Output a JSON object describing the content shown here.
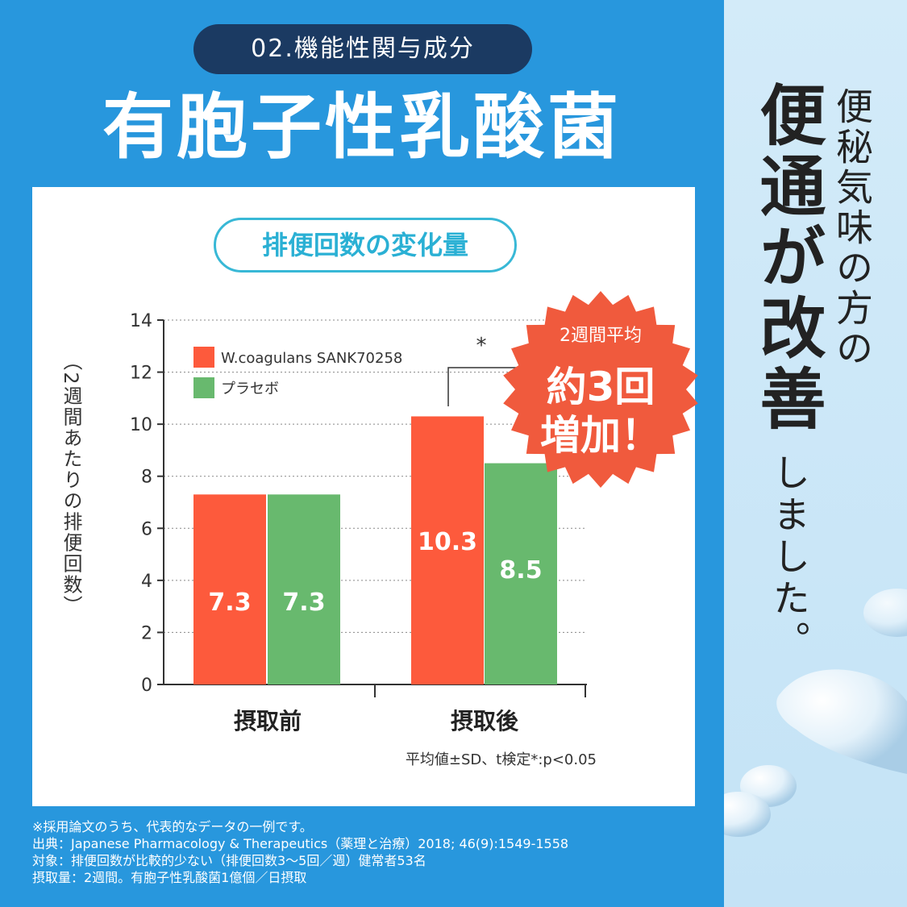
{
  "header": {
    "badge": "02.機能性関与成分",
    "title": "有胞子性乳酸菌"
  },
  "side": {
    "line1": "便秘気味の方の",
    "line2": "便通が改善",
    "line3": "しました。"
  },
  "burst": {
    "line1": "2週間平均",
    "line2": "約3回",
    "line3": "増加！"
  },
  "chart_data": {
    "type": "bar",
    "title": "排便回数の変化量",
    "ylabel": "（2週間あたりの排便回数）",
    "ylim": [
      0,
      14
    ],
    "yticks": [
      0,
      2,
      4,
      6,
      8,
      10,
      12,
      14
    ],
    "categories": [
      "摂取前",
      "摂取後"
    ],
    "series": [
      {
        "name": "W.coagulans SANK70258",
        "color": "#fd5a3c",
        "values": [
          7.3,
          10.3
        ]
      },
      {
        "name": "プラセボ",
        "color": "#68b96e",
        "values": [
          7.3,
          8.5
        ]
      }
    ],
    "bar_label_values": [
      "7.3",
      "7.3",
      "10.3",
      "8.5"
    ],
    "significance_marker": "*",
    "legend_position": "top-left",
    "grid": "dotted",
    "note": "平均値±SD、t検定*:p<0.05"
  },
  "footnotes": [
    "※採用論文のうち、代表的なデータの一例です。",
    "出典：Japanese Pharmacology & Therapeutics（薬理と治療）2018; 46(9):1549-1558",
    "対象：排便回数が比較的少ない（排便回数3〜5回／週）健常者53名",
    "摂取量：2週間。有胞子性乳酸菌1億個／日摂取"
  ]
}
